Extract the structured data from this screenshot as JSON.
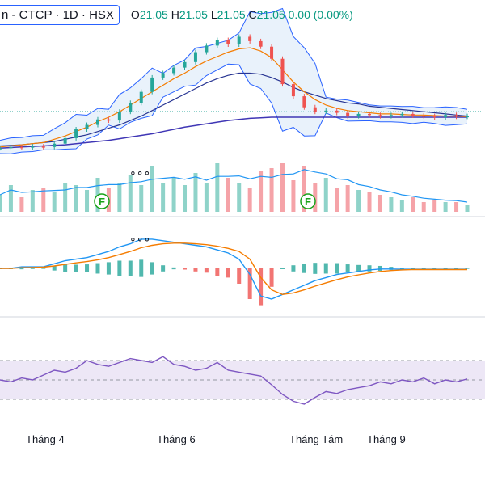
{
  "header": {
    "symbol_text": "n - CTCP · 1D · HSX",
    "ohlc": [
      {
        "label": "O",
        "value": "21.05"
      },
      {
        "label": "H",
        "value": "21.05"
      },
      {
        "label": "L",
        "value": "21.05"
      },
      {
        "label": "C",
        "value": "21.05"
      },
      {
        "label": "",
        "value": "0.00 (0.00%)"
      }
    ]
  },
  "x_axis_labels": [
    "Tháng 4",
    "Tháng 6",
    "Tháng Tám",
    "Tháng 9"
  ],
  "event_markers": [
    "F",
    "F"
  ],
  "colors": {
    "up": "#26a69a",
    "down": "#ef5350",
    "bb": "#2962ff",
    "bb_fill": "#cfe2f7",
    "ema_fast": "#f57c00",
    "ema_slow": "#283593",
    "macd": "#2196f3",
    "signal": "#f57c00",
    "rsi": "#7e57c2",
    "rsi_band": "#ede7f6"
  },
  "chart_data": [
    {
      "type": "line",
      "title": "Price (candlestick) with Bollinger Bands and moving averages",
      "series": [
        {
          "values": [
            0.5,
            0.6,
            0.55,
            0.65,
            0.6,
            0.9,
            1.4,
            2.2,
            2.6,
            3.1,
            3.0,
            3.8,
            4.6,
            5.6,
            6.9,
            7.3,
            7.8,
            8.3,
            9.2,
            9.8,
            10.3,
            9.9,
            10.6,
            10.2,
            9.7,
            8.6,
            6.3,
            5.2,
            4.2,
            3.8,
            3.9,
            3.7,
            3.4,
            3.6,
            3.5,
            3.4,
            3.5,
            3.6,
            3.45,
            3.4,
            3.3,
            3.5,
            3.35,
            3.4
          ]
        },
        {
          "values": [
            0.6,
            0.7,
            0.8,
            0.9,
            1.0,
            1.3,
            1.6,
            2.0,
            2.4,
            2.9,
            3.3,
            3.8,
            4.4,
            5.0,
            5.6,
            6.2,
            6.8,
            7.3,
            7.9,
            8.4,
            8.8,
            9.2,
            9.5,
            9.6,
            9.3,
            8.7,
            7.6,
            6.5,
            5.6,
            4.9,
            4.4,
            4.1,
            3.9,
            3.8,
            3.7,
            3.6,
            3.6,
            3.55,
            3.5,
            3.5,
            3.45,
            3.4,
            3.4,
            3.35
          ]
        },
        {
          "values": [
            0.7,
            0.75,
            0.8,
            0.9,
            1.0,
            1.1,
            1.3,
            1.5,
            1.7,
            2.0,
            2.3,
            2.6,
            3.0,
            3.4,
            3.9,
            4.4,
            4.9,
            5.4,
            5.9,
            6.4,
            6.8,
            7.1,
            7.3,
            7.3,
            7.2,
            6.9,
            6.5,
            6.0,
            5.6,
            5.3,
            5.0,
            4.8,
            4.6,
            4.5,
            4.3,
            4.2,
            4.1,
            4.0,
            3.9,
            3.8,
            3.7,
            3.6,
            3.5,
            3.4
          ]
        },
        {
          "values": [
            0.5,
            0.55,
            0.6,
            0.65,
            0.7,
            0.75,
            0.8,
            0.9,
            1.0,
            1.1,
            1.2,
            1.35,
            1.5,
            1.65,
            1.8,
            2.0,
            2.2,
            2.4,
            2.55,
            2.7,
            2.85,
            3.0,
            3.1,
            3.2,
            3.25,
            3.3,
            3.3,
            3.3,
            3.3,
            3.3,
            3.3,
            3.3,
            3.3,
            3.3,
            3.3,
            3.3,
            3.3,
            3.3,
            3.3,
            3.3,
            3.3,
            3.3,
            3.3,
            3.3
          ]
        }
      ]
    },
    {
      "type": "bar",
      "title": "Volume",
      "values": [
        0.35,
        0.55,
        0.3,
        0.45,
        0.5,
        0.4,
        0.6,
        0.55,
        0.45,
        0.7,
        0.5,
        0.6,
        0.75,
        0.55,
        0.95,
        0.6,
        0.7,
        0.55,
        0.8,
        0.6,
        1.0,
        0.7,
        0.6,
        0.5,
        0.85,
        0.9,
        1.0,
        0.65,
        0.95,
        0.6,
        0.7,
        0.5,
        0.55,
        0.45,
        0.4,
        0.35,
        0.3,
        0.25,
        0.3,
        0.2,
        0.25,
        0.2,
        0.2,
        0.15
      ]
    },
    {
      "type": "line",
      "title": "MACD",
      "series": [
        {
          "values": [
            0,
            0,
            0.05,
            0.05,
            0.05,
            0.15,
            0.25,
            0.3,
            0.35,
            0.45,
            0.55,
            0.7,
            0.8,
            0.95,
            0.95,
            0.9,
            0.85,
            0.8,
            0.75,
            0.7,
            0.6,
            0.5,
            0.3,
            -0.2,
            -0.9,
            -1.0,
            -0.85,
            -0.7,
            -0.55,
            -0.4,
            -0.3,
            -0.2,
            -0.15,
            -0.1,
            -0.05,
            -0.02,
            -0.02,
            -0.03,
            -0.03,
            -0.03,
            -0.03,
            -0.03,
            -0.03,
            -0.03
          ]
        },
        {
          "values": [
            0,
            0,
            0.02,
            0.03,
            0.04,
            0.08,
            0.13,
            0.18,
            0.22,
            0.28,
            0.35,
            0.45,
            0.55,
            0.67,
            0.75,
            0.8,
            0.82,
            0.82,
            0.8,
            0.77,
            0.72,
            0.65,
            0.55,
            0.3,
            -0.3,
            -0.7,
            -0.85,
            -0.8,
            -0.7,
            -0.58,
            -0.47,
            -0.37,
            -0.28,
            -0.21,
            -0.15,
            -0.1,
            -0.07,
            -0.05,
            -0.04,
            -0.04,
            -0.04,
            -0.04,
            -0.04,
            -0.04
          ]
        }
      ]
    },
    {
      "type": "line",
      "title": "RSI",
      "ylim": [
        0,
        100
      ],
      "series": [
        {
          "values": [
            50,
            48,
            52,
            50,
            55,
            60,
            58,
            62,
            70,
            66,
            64,
            68,
            72,
            70,
            68,
            74,
            66,
            64,
            60,
            62,
            68,
            60,
            58,
            56,
            54,
            45,
            35,
            28,
            25,
            32,
            38,
            36,
            40,
            42,
            44,
            48,
            46,
            50,
            48,
            52,
            46,
            50,
            48,
            51
          ]
        }
      ]
    }
  ]
}
